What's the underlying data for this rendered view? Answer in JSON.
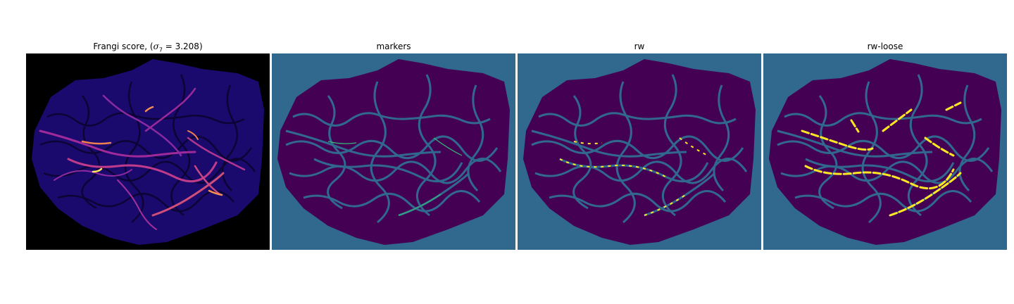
{
  "panels": [
    {
      "title_prefix": "Frangi score, (",
      "title_sigma": "σ",
      "title_sub": "7",
      "title_suffix": " = 3.208)"
    },
    {
      "title": "markers"
    },
    {
      "title": "rw"
    },
    {
      "title": "rw-loose"
    }
  ],
  "colors": {
    "frangi_bg": "#000000",
    "frangi_tissue": "#1a0a6e",
    "frangi_vessel_low": "#7a1fa0",
    "frangi_vessel_high": "#f07f4f",
    "frangi_vessel_peak": "#fde85b",
    "label_background": "#31688e",
    "label_tissue": "#440154",
    "label_vessel": "#35b779",
    "label_vessel_loose": "#fde725"
  }
}
